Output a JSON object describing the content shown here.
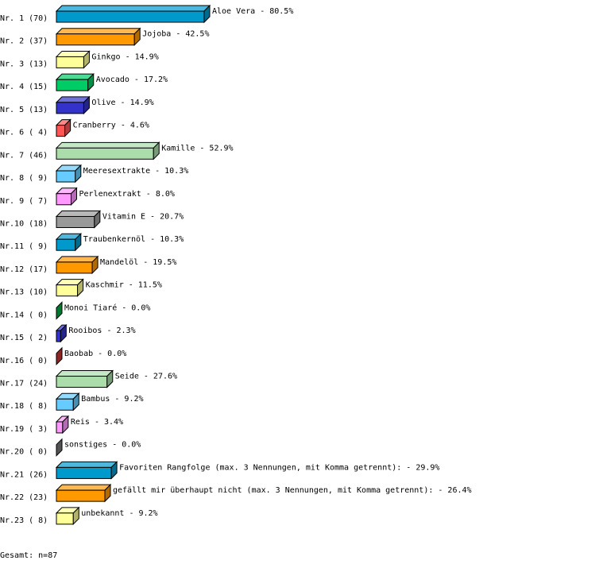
{
  "chart_data": {
    "type": "bar",
    "orientation": "horizontal",
    "style": "3d",
    "unit": "%",
    "rows": [
      {
        "rank": "Nr. 1",
        "count": "(70)",
        "label": "Aloe Vera",
        "value": 80.5,
        "color": "#0099cc"
      },
      {
        "rank": "Nr. 2",
        "count": "(37)",
        "label": "Jojoba",
        "value": 42.5,
        "color": "#ff9900"
      },
      {
        "rank": "Nr. 3",
        "count": "(13)",
        "label": "Ginkgo",
        "value": 14.9,
        "color": "#ffff99"
      },
      {
        "rank": "Nr. 4",
        "count": "(15)",
        "label": "Avocado",
        "value": 17.2,
        "color": "#00cc66"
      },
      {
        "rank": "Nr. 5",
        "count": "(13)",
        "label": "Olive",
        "value": 14.9,
        "color": "#3333cc"
      },
      {
        "rank": "Nr. 6",
        "count": "( 4)",
        "label": "Cranberry",
        "value": 4.6,
        "color": "#ff5555"
      },
      {
        "rank": "Nr. 7",
        "count": "(46)",
        "label": "Kamille",
        "value": 52.9,
        "color": "#aaddaa"
      },
      {
        "rank": "Nr. 8",
        "count": "( 9)",
        "label": "Meeresextrakte",
        "value": 10.3,
        "color": "#66ccff"
      },
      {
        "rank": "Nr. 9",
        "count": "( 7)",
        "label": "Perlenextrakt",
        "value": 8.0,
        "color": "#ff99ff"
      },
      {
        "rank": "Nr.10",
        "count": "(18)",
        "label": "Vitamin E",
        "value": 20.7,
        "color": "#999999"
      },
      {
        "rank": "Nr.11",
        "count": "( 9)",
        "label": "Traubenkernöl",
        "value": 10.3,
        "color": "#0099cc"
      },
      {
        "rank": "Nr.12",
        "count": "(17)",
        "label": "Mandelöl",
        "value": 19.5,
        "color": "#ff9900"
      },
      {
        "rank": "Nr.13",
        "count": "(10)",
        "label": "Kaschmir",
        "value": 11.5,
        "color": "#ffff99"
      },
      {
        "rank": "Nr.14",
        "count": "( 0)",
        "label": "Monoi Tiaré",
        "value": 0.0,
        "color": "#00aa44"
      },
      {
        "rank": "Nr.15",
        "count": "( 2)",
        "label": "Rooibos",
        "value": 2.3,
        "color": "#3333cc"
      },
      {
        "rank": "Nr.16",
        "count": "( 0)",
        "label": "Baobab",
        "value": 0.0,
        "color": "#cc3333"
      },
      {
        "rank": "Nr.17",
        "count": "(24)",
        "label": "Seide",
        "value": 27.6,
        "color": "#aaddaa"
      },
      {
        "rank": "Nr.18",
        "count": "( 8)",
        "label": "Bambus",
        "value": 9.2,
        "color": "#66ccff"
      },
      {
        "rank": "Nr.19",
        "count": "( 3)",
        "label": "Reis",
        "value": 3.4,
        "color": "#ff99ff"
      },
      {
        "rank": "Nr.20",
        "count": "( 0)",
        "label": "sonstiges",
        "value": 0.0,
        "color": "#777777"
      },
      {
        "rank": "Nr.21",
        "count": "(26)",
        "label": "Favoriten Rangfolge (max. 3 Nennungen, mit Komma getrennt):",
        "value": 29.9,
        "color": "#0099cc"
      },
      {
        "rank": "Nr.22",
        "count": "(23)",
        "label": "gefällt mir überhaupt nicht (max. 3 Nennungen, mit Komma getrennt):",
        "value": 26.4,
        "color": "#ff9900"
      },
      {
        "rank": "Nr.23",
        "count": "( 8)",
        "label": "unbekannt",
        "value": 9.2,
        "color": "#ffff99"
      }
    ],
    "footer": "Gesamt: n=87"
  }
}
